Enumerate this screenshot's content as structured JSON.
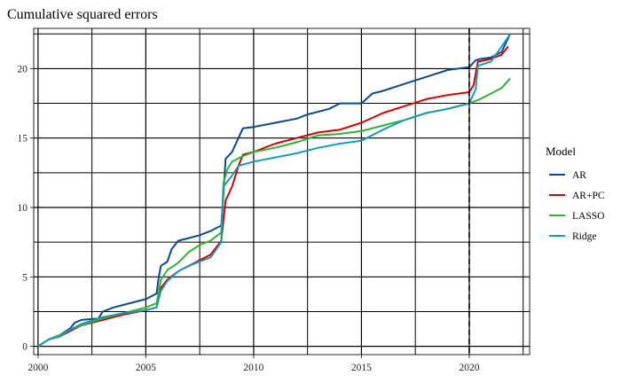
{
  "chart_data": {
    "type": "line",
    "title": "Cumulative squared errors",
    "xlabel": "",
    "ylabel": "",
    "xlim": [
      1999.8,
      2022.8
    ],
    "ylim": [
      -0.6,
      22.9
    ],
    "x_ticks": [
      2000,
      2005,
      2010,
      2015,
      2020
    ],
    "y_ticks": [
      0,
      5,
      10,
      15,
      20
    ],
    "x_tick_labels": [
      "2000",
      "2005",
      "2010",
      "2015",
      "2020"
    ],
    "y_tick_labels": [
      "0",
      "5",
      "10",
      "15",
      "20"
    ],
    "grid": true,
    "vline": {
      "x": 2020,
      "style": "dashed"
    },
    "legend": {
      "title": "Model",
      "position": "right"
    },
    "series": [
      {
        "name": "AR",
        "color": "#0a4a8c",
        "points": [
          [
            2000.0,
            0.0
          ],
          [
            2000.5,
            0.5
          ],
          [
            2001.0,
            0.8
          ],
          [
            2001.5,
            1.3
          ],
          [
            2001.7,
            1.7
          ],
          [
            2002.0,
            1.9
          ],
          [
            2002.8,
            2.0
          ],
          [
            2003.0,
            2.5
          ],
          [
            2003.5,
            2.8
          ],
          [
            2004.0,
            3.0
          ],
          [
            2004.5,
            3.2
          ],
          [
            2005.0,
            3.4
          ],
          [
            2005.5,
            3.8
          ],
          [
            2005.6,
            5.0
          ],
          [
            2005.7,
            5.8
          ],
          [
            2006.0,
            6.1
          ],
          [
            2006.2,
            7.0
          ],
          [
            2006.5,
            7.6
          ],
          [
            2007.0,
            7.8
          ],
          [
            2007.5,
            8.0
          ],
          [
            2008.0,
            8.3
          ],
          [
            2008.5,
            8.7
          ],
          [
            2008.6,
            11.0
          ],
          [
            2008.7,
            13.5
          ],
          [
            2009.0,
            14.0
          ],
          [
            2009.5,
            15.7
          ],
          [
            2010.0,
            15.8
          ],
          [
            2011.0,
            16.1
          ],
          [
            2012.0,
            16.4
          ],
          [
            2012.5,
            16.7
          ],
          [
            2013.0,
            16.9
          ],
          [
            2013.5,
            17.1
          ],
          [
            2014.0,
            17.5
          ],
          [
            2015.0,
            17.5
          ],
          [
            2015.5,
            18.2
          ],
          [
            2016.0,
            18.4
          ],
          [
            2017.0,
            18.9
          ],
          [
            2018.0,
            19.4
          ],
          [
            2019.0,
            19.9
          ],
          [
            2020.0,
            20.1
          ],
          [
            2020.3,
            20.6
          ],
          [
            2020.5,
            20.7
          ],
          [
            2021.0,
            20.8
          ],
          [
            2021.5,
            21.2
          ],
          [
            2021.9,
            22.5
          ]
        ]
      },
      {
        "name": "AR+PC",
        "color": "#d40000",
        "points": [
          [
            2000.0,
            0.0
          ],
          [
            2000.5,
            0.5
          ],
          [
            2001.0,
            0.7
          ],
          [
            2001.5,
            1.1
          ],
          [
            2002.0,
            1.5
          ],
          [
            2003.0,
            1.9
          ],
          [
            2004.0,
            2.3
          ],
          [
            2005.0,
            2.6
          ],
          [
            2005.5,
            2.8
          ],
          [
            2005.7,
            4.2
          ],
          [
            2006.0,
            4.8
          ],
          [
            2006.5,
            5.4
          ],
          [
            2007.0,
            5.8
          ],
          [
            2007.5,
            6.2
          ],
          [
            2008.0,
            6.6
          ],
          [
            2008.5,
            7.6
          ],
          [
            2008.7,
            10.5
          ],
          [
            2009.0,
            11.5
          ],
          [
            2009.3,
            13.0
          ],
          [
            2009.5,
            13.8
          ],
          [
            2010.0,
            14.0
          ],
          [
            2011.0,
            14.6
          ],
          [
            2012.0,
            15.0
          ],
          [
            2013.0,
            15.4
          ],
          [
            2014.0,
            15.6
          ],
          [
            2015.0,
            16.1
          ],
          [
            2016.0,
            16.8
          ],
          [
            2017.0,
            17.3
          ],
          [
            2018.0,
            17.8
          ],
          [
            2019.0,
            18.1
          ],
          [
            2020.0,
            18.3
          ],
          [
            2020.2,
            18.8
          ],
          [
            2020.4,
            20.5
          ],
          [
            2021.0,
            20.7
          ],
          [
            2021.5,
            21.0
          ],
          [
            2021.8,
            21.6
          ]
        ]
      },
      {
        "name": "LASSO",
        "color": "#33b033",
        "points": [
          [
            2000.0,
            0.0
          ],
          [
            2000.5,
            0.5
          ],
          [
            2001.0,
            0.8
          ],
          [
            2001.5,
            1.2
          ],
          [
            2002.0,
            1.5
          ],
          [
            2003.0,
            2.0
          ],
          [
            2004.0,
            2.4
          ],
          [
            2005.0,
            2.8
          ],
          [
            2005.5,
            3.1
          ],
          [
            2005.7,
            4.8
          ],
          [
            2006.0,
            5.5
          ],
          [
            2006.5,
            6.0
          ],
          [
            2007.0,
            6.8
          ],
          [
            2007.5,
            7.3
          ],
          [
            2008.0,
            7.6
          ],
          [
            2008.5,
            8.2
          ],
          [
            2008.6,
            11.8
          ],
          [
            2008.8,
            12.8
          ],
          [
            2009.0,
            13.3
          ],
          [
            2009.5,
            13.7
          ],
          [
            2010.0,
            14.0
          ],
          [
            2011.0,
            14.3
          ],
          [
            2012.0,
            14.7
          ],
          [
            2013.0,
            15.2
          ],
          [
            2014.0,
            15.3
          ],
          [
            2015.0,
            15.5
          ],
          [
            2016.0,
            15.9
          ],
          [
            2017.0,
            16.3
          ],
          [
            2018.0,
            16.8
          ],
          [
            2019.0,
            17.1
          ],
          [
            2020.0,
            17.5
          ],
          [
            2020.5,
            17.8
          ],
          [
            2021.0,
            18.2
          ],
          [
            2021.5,
            18.6
          ],
          [
            2021.9,
            19.3
          ]
        ]
      },
      {
        "name": "Ridge",
        "color": "#1a9bb5",
        "points": [
          [
            2000.0,
            0.0
          ],
          [
            2000.5,
            0.5
          ],
          [
            2001.0,
            0.7
          ],
          [
            2001.5,
            1.2
          ],
          [
            2002.0,
            1.6
          ],
          [
            2003.0,
            2.1
          ],
          [
            2004.0,
            2.4
          ],
          [
            2005.0,
            2.6
          ],
          [
            2005.5,
            2.8
          ],
          [
            2005.7,
            4.0
          ],
          [
            2006.0,
            4.7
          ],
          [
            2006.5,
            5.4
          ],
          [
            2007.0,
            5.8
          ],
          [
            2007.5,
            6.1
          ],
          [
            2008.0,
            6.4
          ],
          [
            2008.5,
            7.5
          ],
          [
            2008.6,
            11.5
          ],
          [
            2009.0,
            12.3
          ],
          [
            2009.3,
            13.0
          ],
          [
            2010.0,
            13.3
          ],
          [
            2011.0,
            13.6
          ],
          [
            2012.0,
            13.9
          ],
          [
            2013.0,
            14.3
          ],
          [
            2014.0,
            14.6
          ],
          [
            2015.0,
            14.8
          ],
          [
            2016.0,
            15.6
          ],
          [
            2017.0,
            16.3
          ],
          [
            2018.0,
            16.8
          ],
          [
            2019.0,
            17.1
          ],
          [
            2020.0,
            17.5
          ],
          [
            2020.3,
            18.5
          ],
          [
            2020.4,
            20.2
          ],
          [
            2021.0,
            20.5
          ],
          [
            2021.5,
            21.6
          ],
          [
            2021.9,
            22.5
          ]
        ]
      }
    ]
  }
}
